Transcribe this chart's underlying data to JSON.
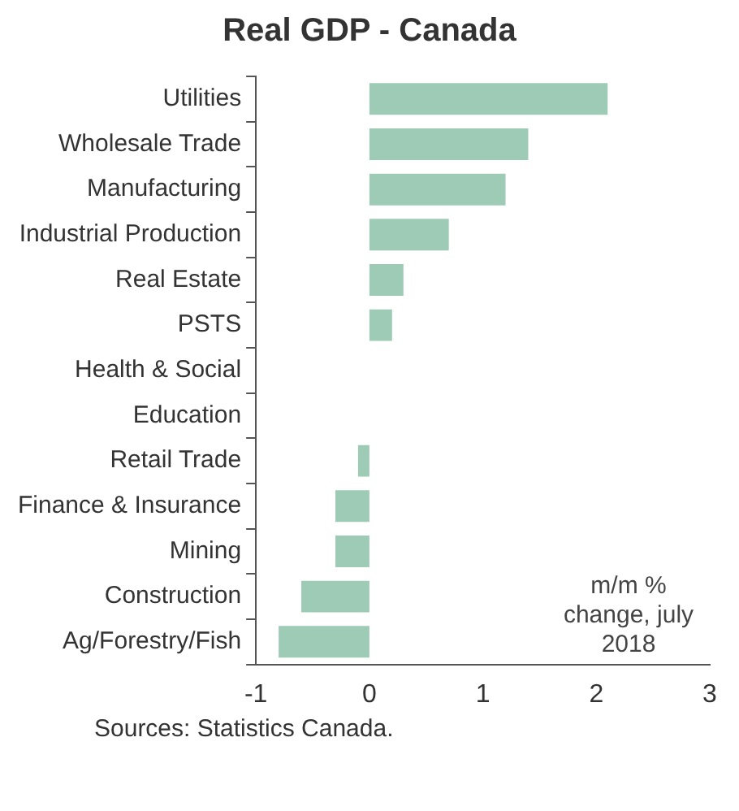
{
  "chart_data": {
    "type": "bar",
    "orientation": "horizontal",
    "title": "Real GDP - Canada",
    "categories": [
      "Utilities",
      "Wholesale Trade",
      "Manufacturing",
      "Industrial Production",
      "Real Estate",
      "PSTS",
      "Health & Social",
      "Education",
      "Retail Trade",
      "Finance & Insurance",
      "Mining",
      "Construction",
      "Ag/Forestry/Fish"
    ],
    "values": [
      2.1,
      1.4,
      1.2,
      0.7,
      0.3,
      0.2,
      0,
      0,
      -0.1,
      -0.3,
      -0.3,
      -0.6,
      -0.8
    ],
    "color": "#9dcbb5",
    "xlim": [
      -1,
      3
    ],
    "xticks": [
      -1,
      0,
      1,
      2,
      3
    ],
    "grid": false,
    "annotations": [
      "m/m % change, july 2018",
      "Sources: Statistics Canada."
    ]
  }
}
